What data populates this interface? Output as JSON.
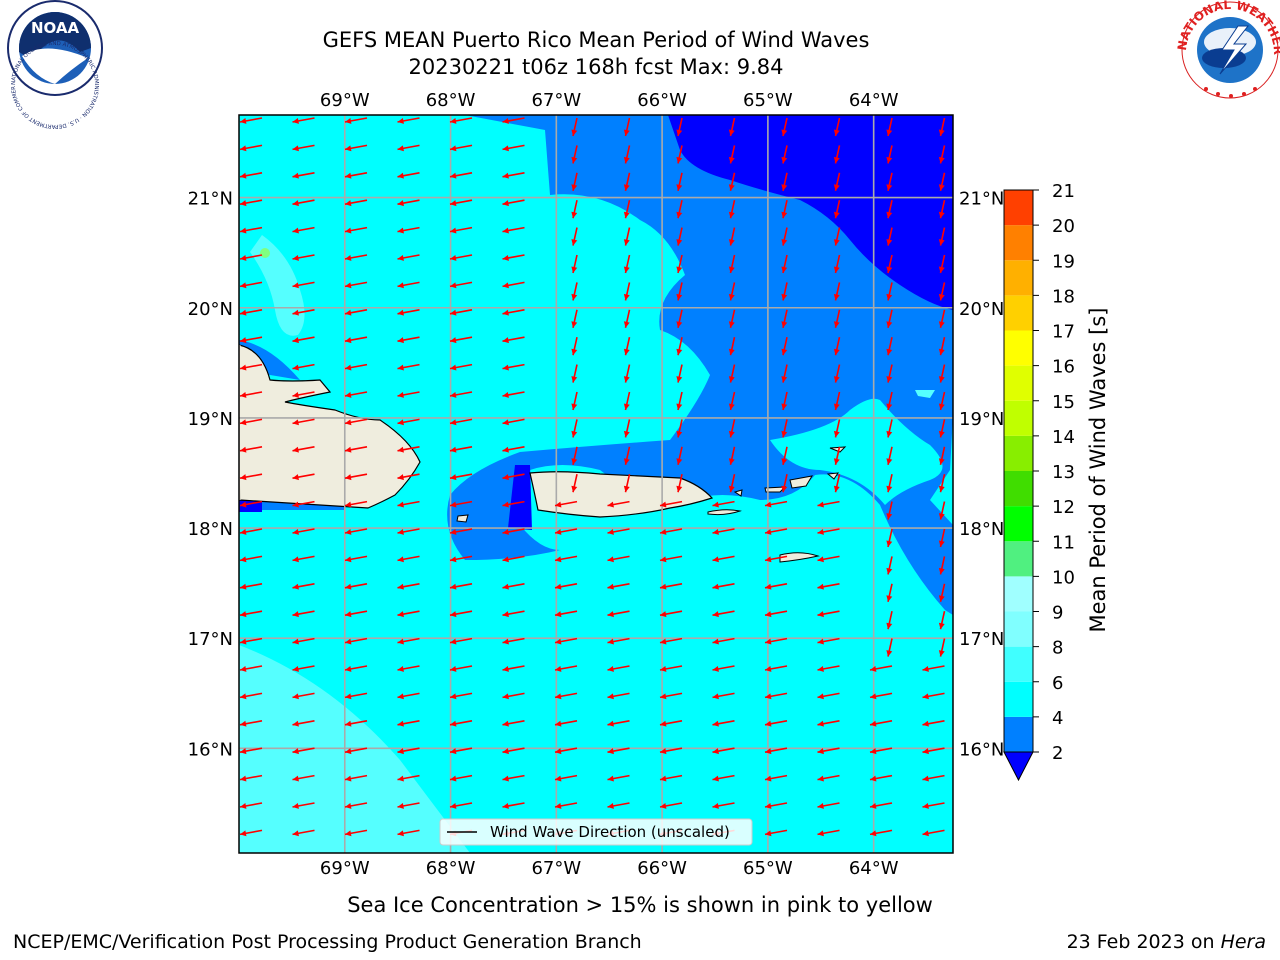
{
  "title": {
    "line1": "GEFS MEAN Puerto Rico Mean Period of Wind Waves",
    "line2": "20230221 t06z 168h fcst   Max: 9.84"
  },
  "map": {
    "lon_labels": [
      "69°W",
      "68°W",
      "67°W",
      "66°W",
      "65°W",
      "64°W"
    ],
    "lat_labels": [
      "21°N",
      "20°N",
      "19°N",
      "18°N",
      "17°N",
      "16°N"
    ],
    "lon_values": [
      -69,
      -68,
      -67,
      -66,
      -65,
      -64
    ],
    "lat_values": [
      21,
      20,
      19,
      18,
      17,
      16
    ],
    "lon_range": [
      -70,
      -63.25
    ],
    "lat_range": [
      15.05,
      21.75
    ],
    "legend_label": "Wind Wave Direction (unscaled)",
    "arrow_color": "#ff0000",
    "land_color": "#efedde",
    "grid": true
  },
  "colorbar": {
    "label": "Mean Period of Wind Waves [s]",
    "ticks": [
      "2",
      "4",
      "6",
      "8",
      "9",
      "10",
      "11",
      "12",
      "13",
      "14",
      "15",
      "16",
      "17",
      "18",
      "19",
      "20",
      "21"
    ],
    "colors": [
      "#0080ff",
      "#00ffff",
      "#40ffff",
      "#80ffff",
      "#a0ffff",
      "#50f080",
      "#00ff00",
      "#40dd00",
      "#88ee00",
      "#c0ff00",
      "#e0ff00",
      "#ffff00",
      "#ffd000",
      "#ffb000",
      "#ff8000",
      "#ff4000",
      "#ff0000"
    ],
    "under_color": "#0000ff"
  },
  "caption": "Sea Ice Concentration > 15% is shown in pink to yellow",
  "footer": {
    "left": "NCEP/EMC/Verification Post Processing Product Generation Branch",
    "date": "23 Feb 2023 on ",
    "machine": "Hera"
  },
  "logos": {
    "noaa_text": "NOAA",
    "noaa_ring": "NATIONAL OCEANIC AND ATMOSPHERIC ADMINISTRATION · U.S. DEPARTMENT OF COMMERCE",
    "nws_ring": "NATIONAL WEATHER SERVICE"
  }
}
